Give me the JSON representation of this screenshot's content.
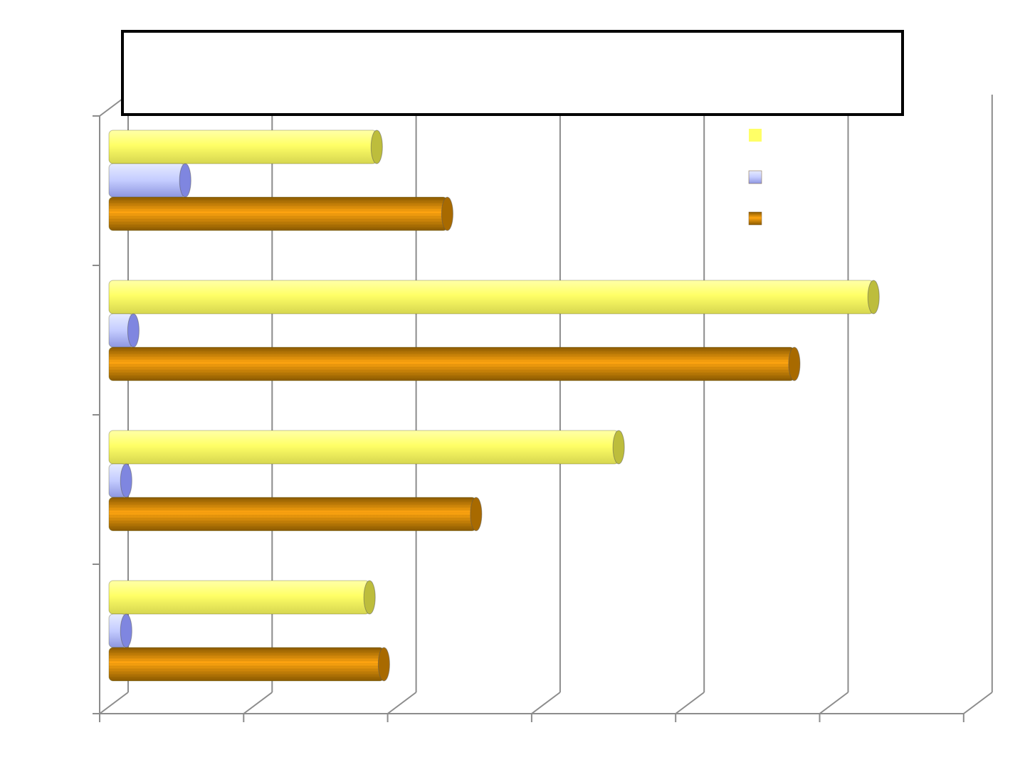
{
  "chart_data": {
    "type": "bar",
    "orientation": "horizontal",
    "style": "3d-cylinder",
    "title": "",
    "xlabel": "",
    "ylabel": "",
    "categories": [
      "",
      "",
      "",
      ""
    ],
    "xlim": [
      0,
      6
    ],
    "grid": true,
    "legend_position": "top-right",
    "series": [
      {
        "values": [
          1.86,
          5.31,
          3.54,
          1.81
        ],
        "color": "#FFFF66"
      },
      {
        "values": [
          0.53,
          0.17,
          0.12,
          0.12
        ],
        "color": "#B8C4FF"
      },
      {
        "values": [
          2.35,
          4.76,
          2.55,
          1.91
        ],
        "color": "#CC8400"
      }
    ]
  }
}
